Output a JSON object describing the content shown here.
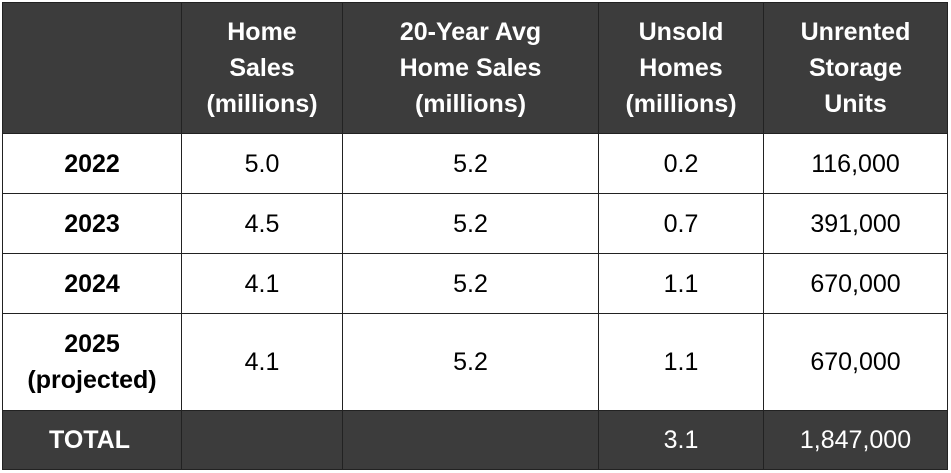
{
  "table": {
    "header": {
      "corner": "",
      "columns": [
        "Home\nSales\n(millions)",
        "20-Year Avg\nHome Sales\n(millions)",
        "Unsold\nHomes\n(millions)",
        "Unrented\nStorage\nUnits"
      ]
    },
    "rows": [
      {
        "year": "2022",
        "home_sales": "5.0",
        "avg_home_sales": "5.2",
        "unsold_homes": "0.2",
        "unrented_units": "116,000"
      },
      {
        "year": "2023",
        "home_sales": "4.5",
        "avg_home_sales": "5.2",
        "unsold_homes": "0.7",
        "unrented_units": "391,000"
      },
      {
        "year": "2024",
        "home_sales": "4.1",
        "avg_home_sales": "5.2",
        "unsold_homes": "1.1",
        "unrented_units": "670,000"
      },
      {
        "year": "2025\n(projected)",
        "home_sales": "4.1",
        "avg_home_sales": "5.2",
        "unsold_homes": "1.1",
        "unrented_units": "670,000"
      }
    ],
    "total": {
      "label": "TOTAL",
      "home_sales": "",
      "avg_home_sales": "",
      "unsold_homes": "3.1",
      "unrented_units": "1,847,000"
    }
  },
  "colors": {
    "header_bg": "#3c3c3c",
    "header_text": "#ffffff",
    "body_bg": "#ffffff",
    "border": "#222222"
  }
}
